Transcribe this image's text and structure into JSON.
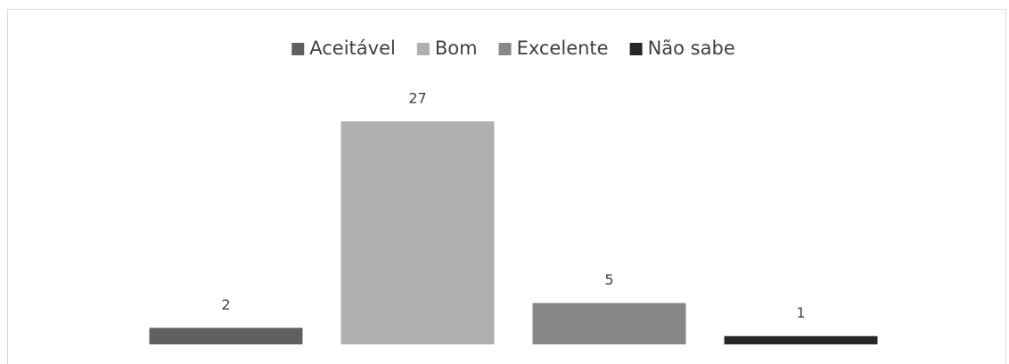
{
  "chart_data": {
    "type": "bar",
    "series": [
      {
        "name": "Aceitável",
        "color": "#606060",
        "values": [
          2
        ]
      },
      {
        "name": "Bom",
        "color": "#b0b0b0",
        "values": [
          27
        ]
      },
      {
        "name": "Excelente",
        "color": "#878787",
        "values": [
          5
        ]
      },
      {
        "name": "Não sabe",
        "color": "#262626",
        "values": [
          1
        ]
      }
    ],
    "legend": "top"
  }
}
